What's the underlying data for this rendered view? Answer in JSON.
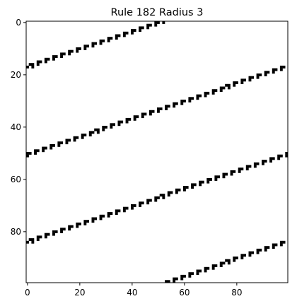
{
  "chart_data": {
    "type": "heatmap",
    "title": "Rule 182 Radius 3",
    "xlabel": "",
    "ylabel": "",
    "grid_size": [
      100,
      100
    ],
    "xlim": [
      0,
      99
    ],
    "ylim": [
      99,
      0
    ],
    "x_ticks": [
      0,
      20,
      40,
      60,
      80
    ],
    "y_ticks": [
      0,
      20,
      40,
      60,
      80
    ],
    "x_tick_labels": [
      "0",
      "20",
      "40",
      "60",
      "80"
    ],
    "y_tick_labels": [
      "0",
      "20",
      "40",
      "60",
      "80"
    ],
    "grid": false,
    "colormap": "binary",
    "on_color": "#000000",
    "off_color": "#ffffff",
    "diagonal_bands": [
      {
        "x_at_row_0": 50,
        "x_per_row": -2.94
      },
      {
        "x_at_row_0": 148.5,
        "x_per_row": -2.94
      },
      {
        "x_at_row_0": 247,
        "x_per_row": -2.94
      },
      {
        "x_at_row_0": 345.5,
        "x_per_row": -2.94
      }
    ],
    "cell_pattern": "1101"
  }
}
